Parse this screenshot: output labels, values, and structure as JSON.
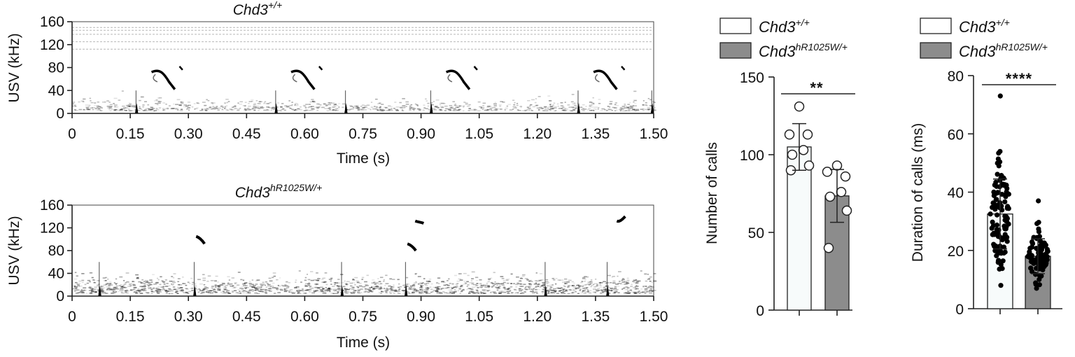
{
  "chart_data": [
    {
      "type": "heatmap",
      "title_base": "Chd3",
      "title_sup": "+/+",
      "ylabel": "USV (kHz)",
      "xlabel": "Time (s)",
      "xlim": [
        0,
        1.5
      ],
      "ylim": [
        0,
        160
      ],
      "xticks": [
        "0",
        "0.15",
        "0.30",
        "0.45",
        "0.60",
        "0.75",
        "0.90",
        "1.05",
        "1.20",
        "1.35",
        "1.50"
      ],
      "yticks": [
        "0",
        "40",
        "80",
        "120",
        "160"
      ],
      "noise_lines_khz": [
        150,
        145,
        138,
        125,
        112
      ],
      "calls": [
        {
          "t": 0.165,
          "type": "complex"
        },
        {
          "t": 0.525,
          "type": "complex"
        },
        {
          "t": 0.925,
          "type": "complex"
        },
        {
          "t": 1.305,
          "type": "complex"
        }
      ],
      "broadband": [
        0.165,
        0.525,
        0.705,
        0.925,
        1.305,
        1.495
      ]
    },
    {
      "type": "heatmap",
      "title_base": "Chd3",
      "title_sup": "hR1025W/+",
      "ylabel": "USV (kHz)",
      "xlabel": "Time (s)",
      "xlim": [
        0,
        1.5
      ],
      "ylim": [
        0,
        160
      ],
      "xticks": [
        "0",
        "0.15",
        "0.30",
        "0.45",
        "0.60",
        "0.75",
        "0.90",
        "1.05",
        "1.20",
        "1.35",
        "1.50"
      ],
      "yticks": [
        "0",
        "40",
        "80",
        "120",
        "160"
      ],
      "calls": [
        {
          "t": 0.32,
          "khz_start": 105,
          "khz_end": 92
        },
        {
          "t": 0.865,
          "khz_start": 92,
          "khz_end": 80
        },
        {
          "t": 0.885,
          "khz_start": 132,
          "khz_end": 128
        },
        {
          "t": 1.405,
          "khz_start": 132,
          "khz_end": 140
        }
      ],
      "broadband": [
        0.07,
        0.315,
        0.695,
        0.86,
        1.22,
        1.38
      ]
    },
    {
      "type": "bar",
      "legend": [
        {
          "base": "Chd3",
          "sup": "+/+",
          "color": "#ffffff"
        },
        {
          "base": "Chd3",
          "sup": "hR1025W/+",
          "color": "#8c8c8c"
        }
      ],
      "ylabel": "Number of calls",
      "ylim": [
        0,
        150
      ],
      "yticks": [
        "0",
        "50",
        "100",
        "150"
      ],
      "series": [
        {
          "name": "Chd3 +/+",
          "mean": 105,
          "sd": 15,
          "color": "#f7fbfb",
          "points": [
            131,
            113,
            113,
            103,
            100,
            93,
            90
          ]
        },
        {
          "name": "Chd3 hR1025W/+",
          "mean": 73.5,
          "sd": 17,
          "color": "#8c8c8c",
          "points": [
            93,
            89,
            86,
            76,
            73,
            64,
            40
          ]
        }
      ],
      "significance": "**"
    },
    {
      "type": "bar",
      "legend": [
        {
          "base": "Chd3",
          "sup": "+/+",
          "color": "#ffffff"
        },
        {
          "base": "Chd3",
          "sup": "hR1025W/+",
          "color": "#8c8c8c"
        }
      ],
      "ylabel": "Duration of calls (ms)",
      "ylim": [
        0,
        80
      ],
      "yticks": [
        "0",
        "20",
        "40",
        "60",
        "80"
      ],
      "series": [
        {
          "name": "Chd3 +/+",
          "mean": 32.5,
          "sd": 12,
          "n": 110,
          "min": 8,
          "max": 73,
          "color": "#f7fbfb"
        },
        {
          "name": "Chd3 hR1025W/+",
          "mean": 18,
          "sd": 6,
          "n": 80,
          "min": 7,
          "max": 37,
          "color": "#8c8c8c"
        }
      ],
      "significance": "****"
    }
  ]
}
